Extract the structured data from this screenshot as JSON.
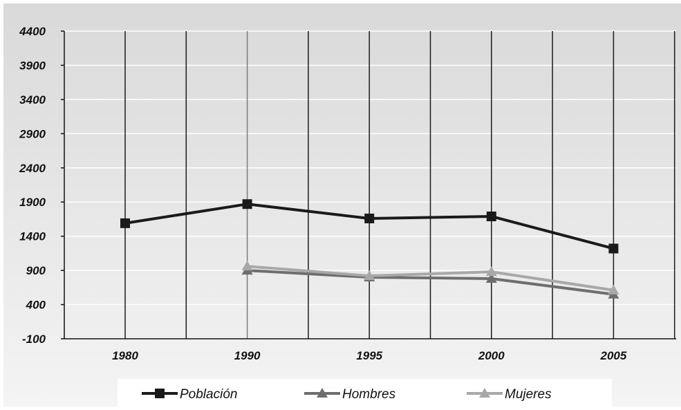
{
  "chart_data": {
    "type": "line",
    "categories": [
      "1980",
      "1990",
      "1995",
      "2000",
      "2005"
    ],
    "y_ticks": [
      "4400",
      "3900",
      "3400",
      "2900",
      "2400",
      "1900",
      "1400",
      "900",
      "400",
      "-100"
    ],
    "ylim": [
      -100,
      4400
    ],
    "grid": true,
    "legend_position": "bottom",
    "series": [
      {
        "name": "Población",
        "marker": "square",
        "color": "#1a1a1a",
        "values": [
          1590,
          1870,
          1660,
          1690,
          1220
        ]
      },
      {
        "name": "Hombres",
        "marker": "triangle",
        "color": "#6e6e6e",
        "values": [
          null,
          900,
          800,
          780,
          550
        ]
      },
      {
        "name": "Mujeres",
        "marker": "triangle",
        "color": "#a8a8a8",
        "values": [
          null,
          960,
          820,
          880,
          610
        ]
      }
    ]
  }
}
